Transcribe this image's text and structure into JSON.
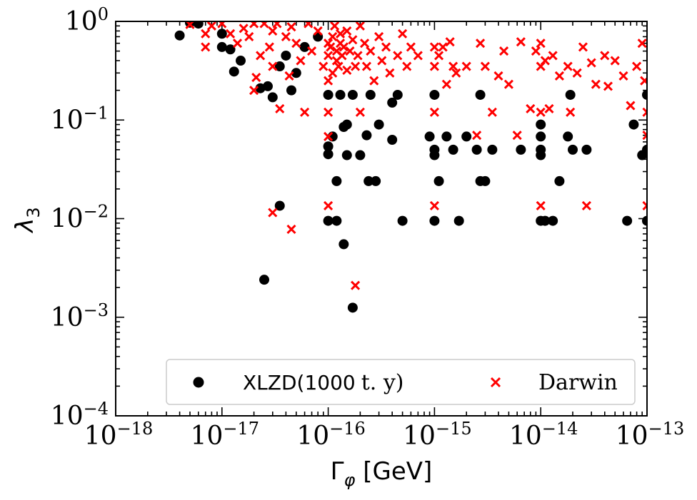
{
  "chart_data": {
    "type": "scatter",
    "xscale": "log",
    "yscale": "log",
    "xlim": [
      1e-18,
      1e-13
    ],
    "ylim": [
      0.0001,
      1
    ],
    "xlabel": "Γ_φ [GeV]",
    "ylabel": "λ_3",
    "x_ticks": [
      {
        "base": "10",
        "exp": "−18"
      },
      {
        "base": "10",
        "exp": "−17"
      },
      {
        "base": "10",
        "exp": "−16"
      },
      {
        "base": "10",
        "exp": "−15"
      },
      {
        "base": "10",
        "exp": "−14"
      },
      {
        "base": "10",
        "exp": "−13"
      }
    ],
    "y_ticks": [
      {
        "base": "10",
        "exp": "−4"
      },
      {
        "base": "10",
        "exp": "−3"
      },
      {
        "base": "10",
        "exp": "−2"
      },
      {
        "base": "10",
        "exp": "−1"
      },
      {
        "base": "10",
        "exp": "0"
      }
    ],
    "legend": {
      "position": "bottom-right",
      "entries": [
        {
          "label_main": "XLZD(1000",
          "label_units": "t. y)",
          "label": "XLZD(1000 t. y)",
          "marker": "circle",
          "color": "#000000"
        },
        {
          "label": "Darwin",
          "marker": "x",
          "color": "#ff0000"
        }
      ]
    },
    "series": [
      {
        "name": "XLZD(1000 t. y)",
        "marker": "circle",
        "color": "#000000",
        "points": [
          [
            4e-18,
            0.72
          ],
          [
            5e-18,
            0.97
          ],
          [
            1e-17,
            0.55
          ],
          [
            1.3e-17,
            0.31
          ],
          [
            1.5e-17,
            0.4
          ],
          [
            2.3e-17,
            0.21
          ],
          [
            2.7e-17,
            0.22
          ],
          [
            3e-17,
            0.17
          ],
          [
            3.5e-17,
            0.35
          ],
          [
            4e-17,
            0.45
          ],
          [
            4.5e-17,
            0.2
          ],
          [
            5e-17,
            0.3
          ],
          [
            6e-17,
            0.55
          ],
          [
            8e-17,
            0.7
          ],
          [
            1e-16,
            0.18
          ],
          [
            1e-16,
            0.054
          ],
          [
            1e-16,
            0.045
          ],
          [
            1e-16,
            0.0095
          ],
          [
            1.1e-16,
            0.068
          ],
          [
            1.2e-16,
            0.0095
          ],
          [
            1.2e-16,
            0.024
          ],
          [
            1.3e-16,
            0.18
          ],
          [
            1.4e-16,
            0.085
          ],
          [
            1.4e-16,
            0.0055
          ],
          [
            1.5e-16,
            0.09
          ],
          [
            1.5e-16,
            0.044
          ],
          [
            1.7e-16,
            0.18
          ],
          [
            1.7e-16,
            0.00125
          ],
          [
            2e-16,
            0.044
          ],
          [
            2.3e-16,
            0.07
          ],
          [
            2.4e-16,
            0.024
          ],
          [
            2.5e-16,
            0.18
          ],
          [
            2.8e-16,
            0.024
          ],
          [
            3e-16,
            0.09
          ],
          [
            4e-16,
            0.063
          ],
          [
            4e-16,
            0.15
          ],
          [
            4.5e-16,
            0.18
          ],
          [
            5e-16,
            0.0095
          ],
          [
            9e-16,
            0.068
          ],
          [
            1e-15,
            0.18
          ],
          [
            1e-15,
            0.05
          ],
          [
            1e-15,
            0.044
          ],
          [
            1e-15,
            0.0095
          ],
          [
            1.1e-15,
            0.024
          ],
          [
            1.3e-15,
            0.068
          ],
          [
            1.5e-15,
            0.05
          ],
          [
            1.7e-15,
            0.0095
          ],
          [
            2e-15,
            0.068
          ],
          [
            2.5e-15,
            0.05
          ],
          [
            2.7e-15,
            0.18
          ],
          [
            2.7e-15,
            0.024
          ],
          [
            3e-15,
            0.024
          ],
          [
            3.5e-15,
            0.05
          ],
          [
            6.5e-15,
            0.05
          ],
          [
            1e-14,
            0.09
          ],
          [
            1e-14,
            0.068
          ],
          [
            1e-14,
            0.05
          ],
          [
            1e-14,
            0.044
          ],
          [
            1e-14,
            0.0095
          ],
          [
            1.1e-14,
            0.0095
          ],
          [
            1.3e-14,
            0.0095
          ],
          [
            1.5e-14,
            0.024
          ],
          [
            1.8e-14,
            0.068
          ],
          [
            1.9e-14,
            0.18
          ],
          [
            2e-14,
            0.05
          ],
          [
            2.7e-14,
            0.05
          ],
          [
            6.5e-14,
            0.0095
          ],
          [
            7.5e-14,
            0.09
          ],
          [
            9e-14,
            0.044
          ],
          [
            1e-13,
            0.05
          ],
          [
            1e-13,
            0.18
          ],
          [
            1e-13,
            0.0095
          ],
          [
            2.5e-17,
            0.0024
          ],
          [
            3.5e-17,
            0.0135
          ],
          [
            1e-17,
            0.75
          ],
          [
            1.2e-17,
            0.52
          ],
          [
            6e-18,
            0.95
          ]
        ]
      },
      {
        "name": "Darwin",
        "marker": "x",
        "color": "#ff0000",
        "points": [
          [
            7e-18,
            0.55
          ],
          [
            7e-18,
            0.75
          ],
          [
            8e-18,
            0.9
          ],
          [
            1e-17,
            0.95
          ],
          [
            1.2e-17,
            0.75
          ],
          [
            1.4e-17,
            0.6
          ],
          [
            1.6e-17,
            0.85
          ],
          [
            1.8e-17,
            0.7
          ],
          [
            2e-17,
            0.95
          ],
          [
            2e-17,
            0.2
          ],
          [
            2.1e-17,
            0.27
          ],
          [
            2.3e-17,
            0.45
          ],
          [
            2.5e-17,
            0.95
          ],
          [
            2.8e-17,
            0.55
          ],
          [
            3e-17,
            0.8
          ],
          [
            3e-17,
            0.35
          ],
          [
            3.3e-17,
            0.95
          ],
          [
            3.5e-17,
            0.13
          ],
          [
            4e-17,
            0.7
          ],
          [
            4.3e-17,
            0.28
          ],
          [
            4.5e-17,
            0.88
          ],
          [
            5e-17,
            0.6
          ],
          [
            5.5e-17,
            0.4
          ],
          [
            6e-17,
            0.12
          ],
          [
            6.5e-17,
            0.95
          ],
          [
            7e-17,
            0.5
          ],
          [
            8e-17,
            0.8
          ],
          [
            9e-17,
            0.35
          ],
          [
            1e-16,
            0.6
          ],
          [
            1e-16,
            0.45
          ],
          [
            1e-16,
            0.25
          ],
          [
            1e-16,
            0.12
          ],
          [
            1e-16,
            0.068
          ],
          [
            1e-16,
            0.0135
          ],
          [
            1.05e-16,
            0.55
          ],
          [
            1.1e-16,
            0.7
          ],
          [
            1.1e-16,
            0.3
          ],
          [
            1.15e-16,
            0.9
          ],
          [
            1.2e-16,
            0.5
          ],
          [
            1.2e-16,
            0.4
          ],
          [
            1.25e-16,
            0.35
          ],
          [
            1.3e-16,
            0.6
          ],
          [
            1.3e-16,
            0.75
          ],
          [
            1.35e-16,
            0.45
          ],
          [
            1.4e-16,
            0.55
          ],
          [
            1.5e-16,
            0.32
          ],
          [
            1.5e-16,
            0.8
          ],
          [
            1.6e-16,
            0.5
          ],
          [
            1.7e-16,
            0.65
          ],
          [
            1.8e-16,
            0.35
          ],
          [
            1.9e-16,
            0.45
          ],
          [
            2e-16,
            0.9
          ],
          [
            2e-16,
            0.12
          ],
          [
            2.2e-16,
            0.6
          ],
          [
            2.3e-16,
            0.35
          ],
          [
            2.5e-16,
            0.5
          ],
          [
            2.7e-16,
            0.25
          ],
          [
            3e-16,
            0.7
          ],
          [
            3.2e-16,
            0.4
          ],
          [
            3.5e-16,
            0.55
          ],
          [
            3.8e-16,
            0.3
          ],
          [
            4.5e-16,
            0.45
          ],
          [
            5e-16,
            0.75
          ],
          [
            5.5e-16,
            0.35
          ],
          [
            6e-16,
            0.55
          ],
          [
            7e-16,
            0.45
          ],
          [
            1e-15,
            0.55
          ],
          [
            1e-15,
            0.35
          ],
          [
            1e-15,
            0.12
          ],
          [
            1e-15,
            0.0135
          ],
          [
            1.1e-15,
            0.45
          ],
          [
            1.2e-15,
            0.55
          ],
          [
            1.3e-15,
            0.23
          ],
          [
            1.5e-15,
            0.35
          ],
          [
            1.6e-15,
            0.3
          ],
          [
            2e-15,
            0.35
          ],
          [
            2.5e-15,
            0.07
          ],
          [
            2.7e-15,
            0.6
          ],
          [
            3e-15,
            0.35
          ],
          [
            3.5e-15,
            0.12
          ],
          [
            4e-15,
            0.28
          ],
          [
            4.5e-15,
            0.5
          ],
          [
            5e-15,
            0.23
          ],
          [
            6e-15,
            0.07
          ],
          [
            6.5e-15,
            0.62
          ],
          [
            8e-15,
            0.13
          ],
          [
            9e-15,
            0.5
          ],
          [
            1e-14,
            0.35
          ],
          [
            1e-14,
            0.6
          ],
          [
            1e-14,
            0.12
          ],
          [
            1e-14,
            0.0135
          ],
          [
            1.1e-14,
            0.4
          ],
          [
            1.2e-14,
            0.13
          ],
          [
            1.3e-14,
            0.45
          ],
          [
            1.5e-14,
            0.28
          ],
          [
            1.8e-14,
            0.35
          ],
          [
            1.9e-14,
            0.12
          ],
          [
            2.2e-14,
            0.3
          ],
          [
            2.5e-14,
            0.55
          ],
          [
            2.7e-14,
            0.0135
          ],
          [
            3e-14,
            0.38
          ],
          [
            3.3e-14,
            0.23
          ],
          [
            4e-14,
            0.45
          ],
          [
            4.3e-14,
            0.22
          ],
          [
            5e-14,
            0.4
          ],
          [
            6e-14,
            0.28
          ],
          [
            7e-14,
            0.14
          ],
          [
            8e-14,
            0.35
          ],
          [
            9e-14,
            0.6
          ],
          [
            9.5e-14,
            0.25
          ],
          [
            1e-13,
            0.12
          ],
          [
            1e-13,
            0.07
          ],
          [
            1e-13,
            0.0135
          ],
          [
            3e-17,
            0.0115
          ],
          [
            4.5e-17,
            0.0078
          ],
          [
            1.8e-16,
            0.0021
          ],
          [
            1.4e-15,
            0.62
          ],
          [
            5e-18,
            0.93
          ]
        ]
      }
    ]
  }
}
